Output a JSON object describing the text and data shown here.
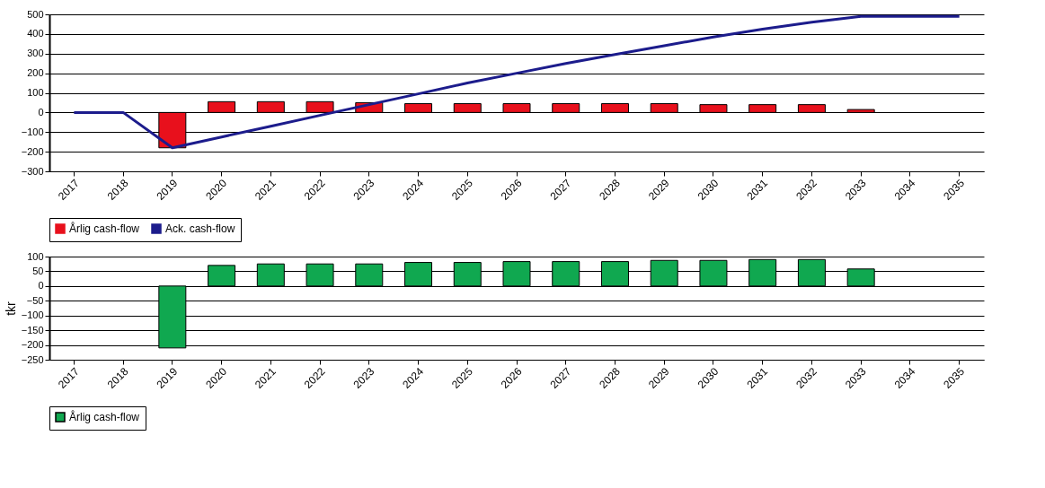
{
  "chart_data": [
    {
      "type": "bar",
      "categories": [
        "2017",
        "2018",
        "2019",
        "2020",
        "2021",
        "2022",
        "2023",
        "2024",
        "2025",
        "2026",
        "2027",
        "2028",
        "2029",
        "2030",
        "2031",
        "2032",
        "2033",
        "2034",
        "2035"
      ],
      "series": [
        {
          "name": "Årlig cash-flow",
          "color": "#e8101c",
          "values": [
            null,
            null,
            -180,
            55,
            55,
            55,
            50,
            45,
            45,
            45,
            45,
            45,
            45,
            40,
            40,
            40,
            15,
            null,
            null
          ]
        },
        {
          "name": "Ack. cash-flow",
          "type": "line",
          "color": "#1c1c8c",
          "values": [
            0,
            0,
            -180,
            -125,
            -70,
            -15,
            40,
            95,
            150,
            200,
            250,
            295,
            340,
            385,
            425,
            460,
            490,
            490,
            490
          ]
        }
      ],
      "ylim": [
        -300,
        500
      ],
      "yticks": [
        -300,
        -200,
        -100,
        0,
        100,
        200,
        300,
        400,
        500
      ],
      "grid": "y",
      "legend": "bottom"
    },
    {
      "type": "bar",
      "ylabel": "tkr",
      "categories": [
        "2017",
        "2018",
        "2019",
        "2020",
        "2021",
        "2022",
        "2023",
        "2024",
        "2025",
        "2026",
        "2027",
        "2028",
        "2029",
        "2030",
        "2031",
        "2032",
        "2033",
        "2034",
        "2035"
      ],
      "series": [
        {
          "name": "Årlig cash-flow",
          "color": "#10a850",
          "values": [
            null,
            null,
            -210,
            70,
            75,
            75,
            75,
            80,
            80,
            83,
            83,
            83,
            87,
            87,
            90,
            90,
            58,
            null,
            null
          ]
        }
      ],
      "ylim": [
        -250,
        100
      ],
      "yticks": [
        -250,
        -200,
        -150,
        -100,
        -50,
        0,
        50,
        100
      ],
      "grid": "y",
      "legend": "bottom"
    }
  ]
}
